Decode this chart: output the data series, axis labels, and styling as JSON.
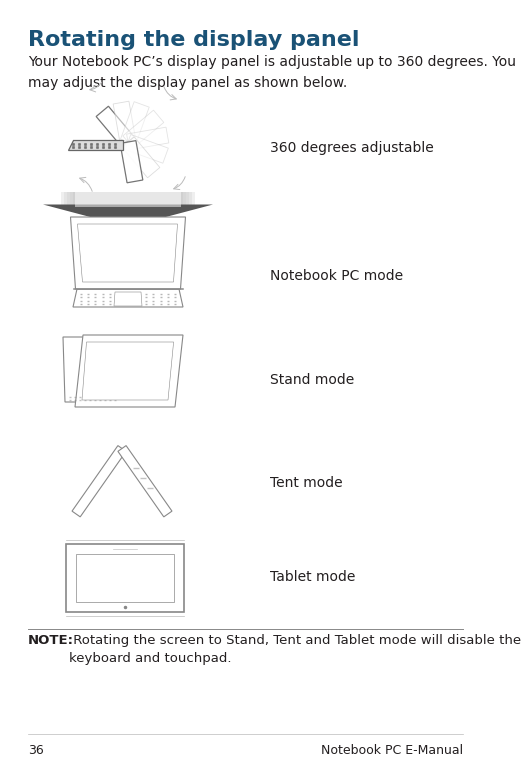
{
  "title": "Rotating the display panel",
  "title_color": "#1a5276",
  "title_fontsize": 16,
  "body_text": "Your Notebook PC’s display panel is adjustable up to 360 degrees. You\nmay adjust the display panel as shown below.",
  "body_fontsize": 10,
  "body_color": "#231f20",
  "page_number": "36",
  "page_label": "Notebook PC E-Manual",
  "footer_color": "#231f20",
  "footer_fontsize": 9,
  "note_fontsize": 9.5,
  "bg_color": "#ffffff",
  "label_fontsize": 10,
  "label_color": "#231f20",
  "line_color": "#aaaaaa",
  "draw_color": "#999999",
  "draw_lw": 0.7
}
